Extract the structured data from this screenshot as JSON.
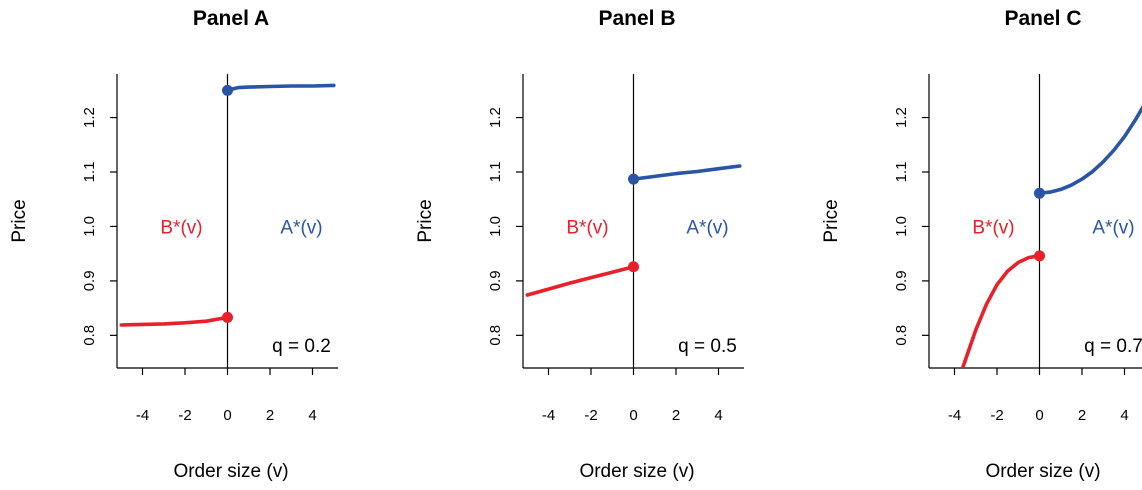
{
  "colors": {
    "bid": "#e8202a",
    "ask": "#2a55a5"
  },
  "chart_data": [
    {
      "type": "line",
      "title": "Panel A",
      "xlabel": "Order size (v)",
      "ylabel": "Price",
      "xlim": [
        -5.2,
        5.2
      ],
      "ylim": [
        0.74,
        1.28
      ],
      "xticks": [
        -4,
        -2,
        0,
        2,
        4
      ],
      "xtick_labels": [
        "-4",
        "-2",
        "0",
        "2",
        "4"
      ],
      "yticks": [
        0.8,
        0.9,
        1.0,
        1.1,
        1.2
      ],
      "ytick_labels": [
        "0.8",
        "0.9",
        "1.0",
        "1.1",
        "1.2"
      ],
      "q_label": "q = 0.2",
      "bid_label": "B*(v)",
      "ask_label": "A*(v)",
      "series": [
        {
          "name": "B*(v)",
          "color": "#e8202a",
          "x": [
            -5,
            -4,
            -3,
            -2,
            -1,
            0
          ],
          "y": [
            0.819,
            0.82,
            0.821,
            0.823,
            0.826,
            0.833
          ]
        },
        {
          "name": "A*(v)",
          "color": "#2a55a5",
          "x": [
            0,
            0.5,
            1,
            2,
            3,
            4,
            5
          ],
          "y": [
            1.25,
            1.255,
            1.256,
            1.257,
            1.258,
            1.258,
            1.259
          ]
        }
      ],
      "points": [
        {
          "x": 0,
          "y": 0.833,
          "color": "#e8202a"
        },
        {
          "x": 0,
          "y": 1.25,
          "color": "#2a55a5"
        }
      ]
    },
    {
      "type": "line",
      "title": "Panel B",
      "xlabel": "Order size (v)",
      "ylabel": "Price",
      "xlim": [
        -5.2,
        5.2
      ],
      "ylim": [
        0.74,
        1.28
      ],
      "xticks": [
        -4,
        -2,
        0,
        2,
        4
      ],
      "xtick_labels": [
        "-4",
        "-2",
        "0",
        "2",
        "4"
      ],
      "yticks": [
        0.8,
        0.9,
        1.0,
        1.1,
        1.2
      ],
      "ytick_labels": [
        "0.8",
        "0.9",
        "1.0",
        "1.1",
        "1.2"
      ],
      "q_label": "q = 0.5",
      "bid_label": "B*(v)",
      "ask_label": "A*(v)",
      "series": [
        {
          "name": "B*(v)",
          "color": "#e8202a",
          "x": [
            -5,
            -4,
            -3,
            -2,
            -1,
            0
          ],
          "y": [
            0.874,
            0.885,
            0.896,
            0.906,
            0.916,
            0.926
          ]
        },
        {
          "name": "A*(v)",
          "color": "#2a55a5",
          "x": [
            0,
            1,
            2,
            3,
            4,
            5
          ],
          "y": [
            1.087,
            1.092,
            1.097,
            1.101,
            1.106,
            1.111
          ]
        }
      ],
      "points": [
        {
          "x": 0,
          "y": 0.926,
          "color": "#e8202a"
        },
        {
          "x": 0,
          "y": 1.087,
          "color": "#2a55a5"
        }
      ]
    },
    {
      "type": "line",
      "title": "Panel C",
      "xlabel": "Order size (v)",
      "ylabel": "Price",
      "xlim": [
        -5.2,
        5.2
      ],
      "ylim": [
        0.74,
        1.28
      ],
      "xticks": [
        -4,
        -2,
        0,
        2,
        4
      ],
      "xtick_labels": [
        "-4",
        "-2",
        "0",
        "2",
        "4"
      ],
      "yticks": [
        0.8,
        0.9,
        1.0,
        1.1,
        1.2
      ],
      "ytick_labels": [
        "0.8",
        "0.9",
        "1.0",
        "1.1",
        "1.2"
      ],
      "q_label": "q = 0.7",
      "bid_label": "B*(v)",
      "ask_label": "A*(v)",
      "series": [
        {
          "name": "B*(v)",
          "color": "#e8202a",
          "x": [
            -3.6,
            -3.0,
            -2.5,
            -2.0,
            -1.5,
            -1.0,
            -0.5,
            0
          ],
          "y": [
            0.742,
            0.81,
            0.857,
            0.893,
            0.918,
            0.934,
            0.943,
            0.946
          ]
        },
        {
          "name": "A*(v)",
          "color": "#2a55a5",
          "x": [
            0,
            0.5,
            1,
            1.5,
            2,
            2.5,
            3,
            3.5,
            4,
            4.5,
            5
          ],
          "y": [
            1.061,
            1.063,
            1.068,
            1.076,
            1.087,
            1.101,
            1.119,
            1.14,
            1.165,
            1.195,
            1.228
          ]
        }
      ],
      "points": [
        {
          "x": 0,
          "y": 0.946,
          "color": "#e8202a"
        },
        {
          "x": 0,
          "y": 1.061,
          "color": "#2a55a5"
        }
      ]
    }
  ]
}
